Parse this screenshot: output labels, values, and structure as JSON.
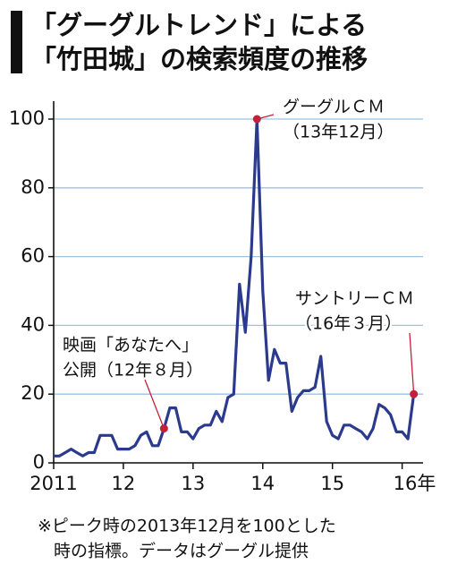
{
  "chart_data": {
    "type": "line",
    "title": [
      "「グーグルトレンド」による",
      "「竹田城」の検索頻度の推移"
    ],
    "note": [
      "※ピーク時の2013年12月を100とした",
      "時の指標。データはグーグル提供"
    ],
    "x": [
      2011.0,
      2011.083,
      2011.167,
      2011.25,
      2011.333,
      2011.417,
      2011.5,
      2011.583,
      2011.667,
      2011.75,
      2011.833,
      2011.917,
      2012.0,
      2012.083,
      2012.167,
      2012.25,
      2012.333,
      2012.417,
      2012.5,
      2012.583,
      2012.667,
      2012.75,
      2012.833,
      2012.917,
      2013.0,
      2013.083,
      2013.167,
      2013.25,
      2013.333,
      2013.417,
      2013.5,
      2013.583,
      2013.667,
      2013.75,
      2013.833,
      2013.917,
      2014.0,
      2014.083,
      2014.167,
      2014.25,
      2014.333,
      2014.417,
      2014.5,
      2014.583,
      2014.667,
      2014.75,
      2014.833,
      2014.917,
      2015.0,
      2015.083,
      2015.167,
      2015.25,
      2015.333,
      2015.417,
      2015.5,
      2015.583,
      2015.667,
      2015.75,
      2015.833,
      2015.917,
      2016.0,
      2016.083,
      2016.167
    ],
    "values": [
      2,
      2,
      3,
      4,
      3,
      2,
      3,
      3,
      8,
      8,
      8,
      4,
      4,
      4,
      5,
      8,
      9,
      5,
      5,
      10,
      16,
      16,
      9,
      9,
      7,
      10,
      11,
      11,
      15,
      12,
      19,
      20,
      52,
      38,
      60,
      100,
      50,
      24,
      33,
      29,
      29,
      15,
      19,
      21,
      21,
      22,
      31,
      12,
      8,
      7,
      11,
      11,
      10,
      9,
      7,
      10,
      17,
      16,
      14,
      9,
      9,
      7,
      20
    ],
    "color": "#2b3a8c",
    "marker_color": "#c4203c",
    "grid_color": "#9cc3e4",
    "xlim": [
      2011,
      2016.3
    ],
    "xticks": [
      {
        "value": 2011,
        "label": "2011"
      },
      {
        "value": 2012,
        "label": "12"
      },
      {
        "value": 2013,
        "label": "13"
      },
      {
        "value": 2014,
        "label": "14"
      },
      {
        "value": 2015,
        "label": "15"
      },
      {
        "value": 2016,
        "label": "16年"
      }
    ],
    "ylim": [
      0,
      100
    ],
    "yticks": [
      0,
      20,
      40,
      60,
      80,
      100
    ],
    "grid": true,
    "annotations": [
      {
        "lines": [
          "映画「あなたへ」",
          "公開（12年８月）"
        ]
      },
      {
        "lines": [
          "グーグルＣＭ",
          "（13年12月）"
        ]
      },
      {
        "lines": [
          "サントリーＣＭ",
          "（16年３月）"
        ]
      }
    ]
  }
}
